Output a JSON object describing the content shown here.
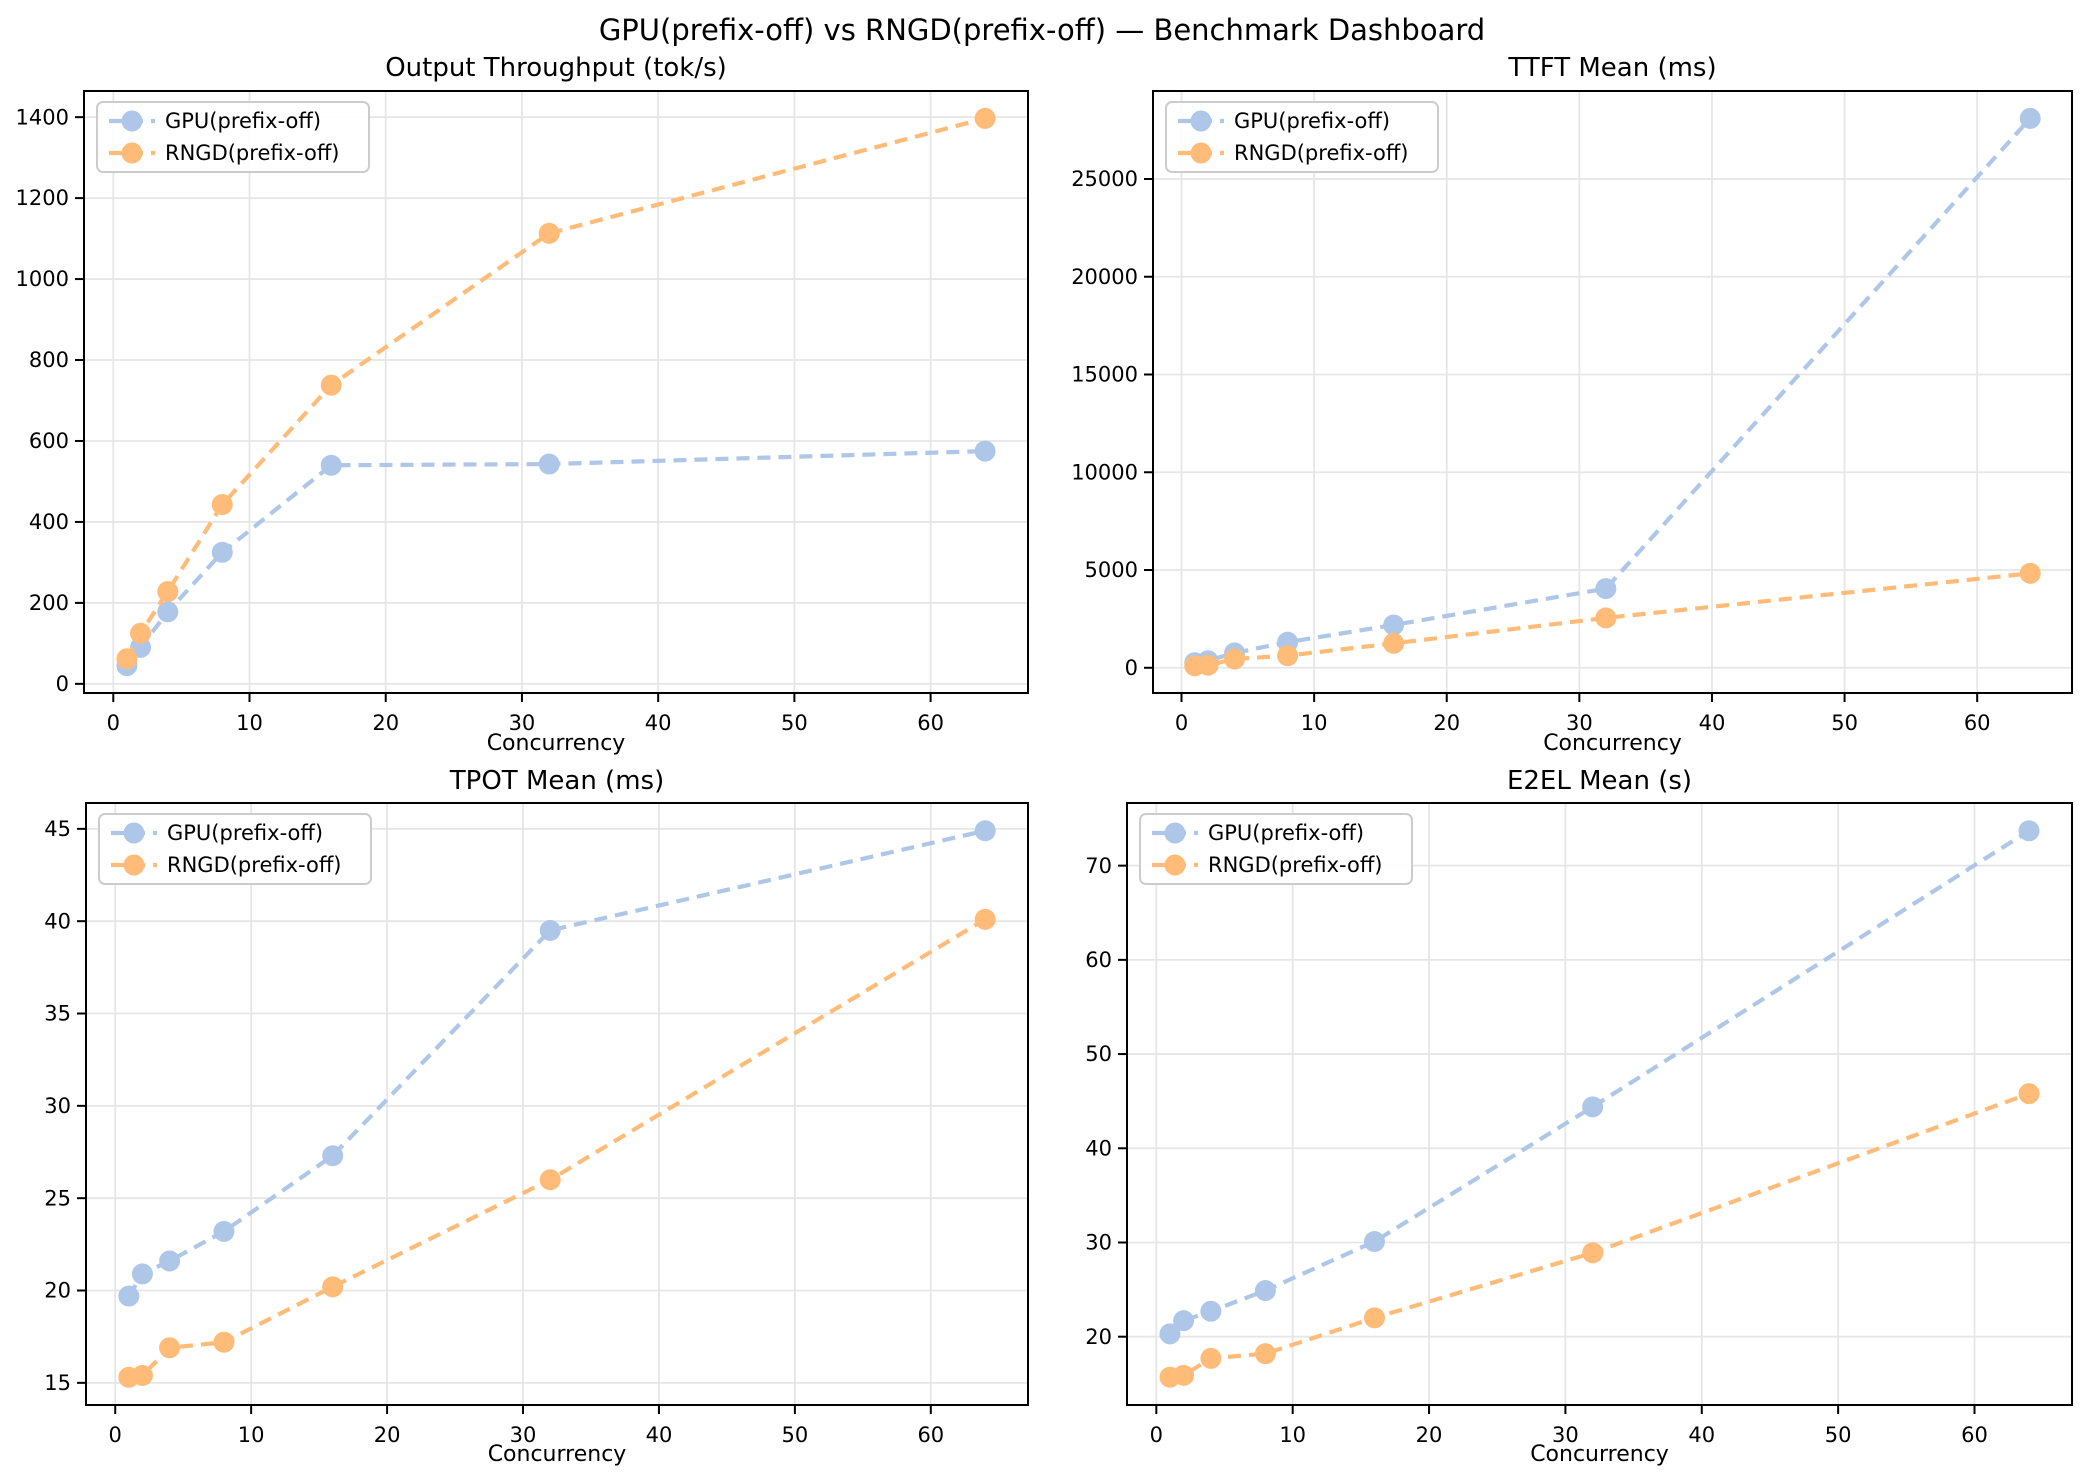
{
  "suptitle": "GPU(prefix-off) vs RNGD(prefix-off) — Benchmark Dashboard",
  "palette": {
    "gpu_series": "#aec7e8",
    "rngd_series": "#ffbb78",
    "gridline": "#e6e6e6",
    "spine": "#000000",
    "legend_border": "#cccccc",
    "background": "#ffffff"
  },
  "chart_data": [
    {
      "type": "line",
      "title": "Output Throughput (tok/s)",
      "xlabel": "Concurrency",
      "ylabel": "",
      "x": [
        1,
        2,
        4,
        8,
        16,
        32,
        64
      ],
      "xticks": [
        0,
        10,
        20,
        30,
        40,
        50,
        60
      ],
      "yticks": [
        0,
        200,
        400,
        600,
        800,
        1000,
        1200,
        1400
      ],
      "xlim": [
        -2.15,
        67.15
      ],
      "ylim": [
        -22.6,
        1464.6
      ],
      "grid": true,
      "legend_position": "upper left",
      "line_style": "dashed",
      "marker": "circle",
      "series": [
        {
          "name": "GPU(prefix-off)",
          "color": "#aec7e8",
          "values": [
            45,
            90,
            178,
            325,
            540,
            543,
            575
          ]
        },
        {
          "name": "RNGD(prefix-off)",
          "color": "#ffbb78",
          "values": [
            62,
            125,
            228,
            443,
            738,
            1113,
            1397
          ]
        }
      ]
    },
    {
      "type": "line",
      "title": "TTFT Mean (ms)",
      "xlabel": "Concurrency",
      "ylabel": "",
      "x": [
        1,
        2,
        4,
        8,
        16,
        32,
        64
      ],
      "xticks": [
        0,
        10,
        20,
        30,
        40,
        50,
        60
      ],
      "yticks": [
        0,
        5000,
        10000,
        15000,
        20000,
        25000
      ],
      "xlim": [
        -2.15,
        67.15
      ],
      "ylim": [
        -1290,
        29500
      ],
      "grid": true,
      "legend_position": "upper left",
      "line_style": "dashed",
      "marker": "circle",
      "series": [
        {
          "name": "GPU(prefix-off)",
          "color": "#aec7e8",
          "values": [
            260,
            360,
            760,
            1310,
            2190,
            4050,
            28100
          ]
        },
        {
          "name": "RNGD(prefix-off)",
          "color": "#ffbb78",
          "values": [
            100,
            130,
            450,
            620,
            1250,
            2550,
            4830
          ]
        }
      ]
    },
    {
      "type": "line",
      "title": "TPOT Mean (ms)",
      "xlabel": "Concurrency",
      "ylabel": "",
      "x": [
        1,
        2,
        4,
        8,
        16,
        32,
        64
      ],
      "xticks": [
        0,
        10,
        20,
        30,
        40,
        50,
        60
      ],
      "yticks": [
        15,
        20,
        25,
        30,
        35,
        40,
        45
      ],
      "xlim": [
        -2.15,
        67.15
      ],
      "ylim": [
        13.8,
        46.4
      ],
      "grid": true,
      "legend_position": "upper left",
      "line_style": "dashed",
      "marker": "circle",
      "series": [
        {
          "name": "GPU(prefix-off)",
          "color": "#aec7e8",
          "values": [
            19.7,
            20.9,
            21.6,
            23.2,
            27.3,
            39.5,
            44.9
          ]
        },
        {
          "name": "RNGD(prefix-off)",
          "color": "#ffbb78",
          "values": [
            15.3,
            15.4,
            16.9,
            17.2,
            20.2,
            26.0,
            40.1
          ]
        }
      ]
    },
    {
      "type": "line",
      "title": "E2EL Mean (s)",
      "xlabel": "Concurrency",
      "ylabel": "",
      "x": [
        1,
        2,
        4,
        8,
        16,
        32,
        64
      ],
      "xticks": [
        0,
        10,
        20,
        30,
        40,
        50,
        60
      ],
      "yticks": [
        20,
        30,
        40,
        50,
        60,
        70
      ],
      "xlim": [
        -2.15,
        67.15
      ],
      "ylim": [
        12.75,
        76.65
      ],
      "grid": true,
      "legend_position": "upper left",
      "line_style": "dashed",
      "marker": "circle",
      "series": [
        {
          "name": "GPU(prefix-off)",
          "color": "#aec7e8",
          "values": [
            20.3,
            21.7,
            22.7,
            24.9,
            30.1,
            44.4,
            73.7
          ]
        },
        {
          "name": "RNGD(prefix-off)",
          "color": "#ffbb78",
          "values": [
            15.7,
            15.9,
            17.7,
            18.2,
            22.0,
            28.9,
            45.8
          ]
        }
      ]
    }
  ]
}
